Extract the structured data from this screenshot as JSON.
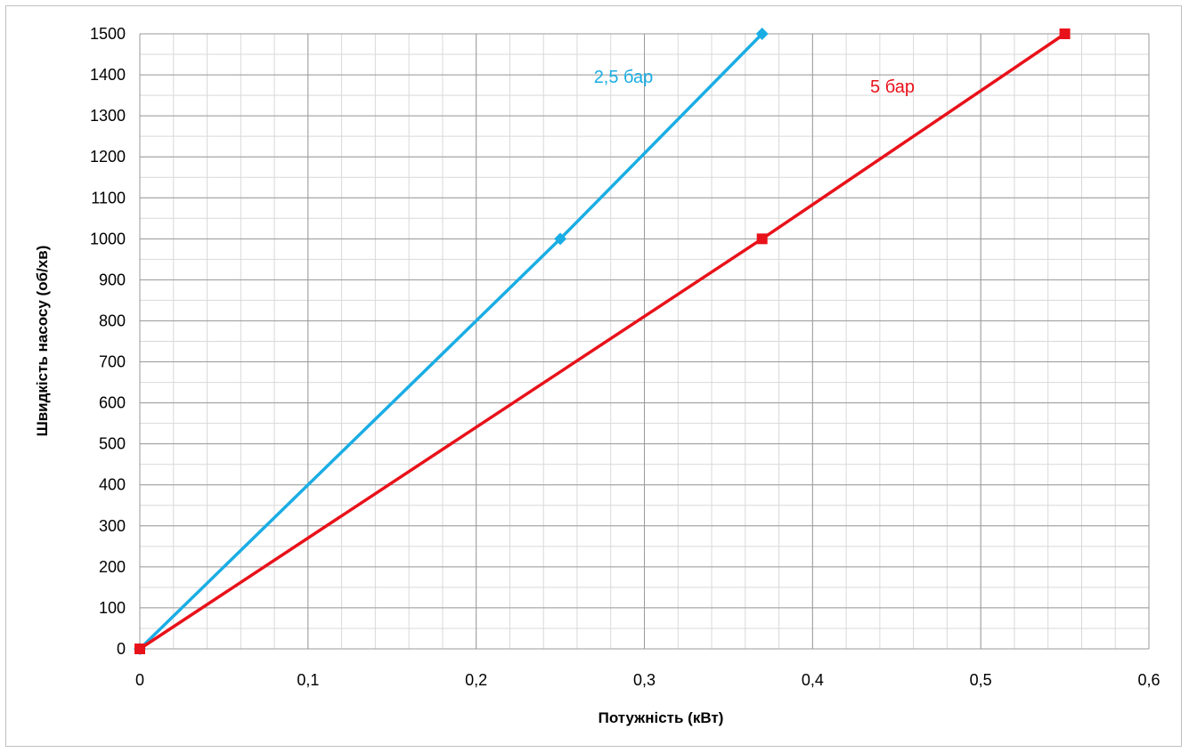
{
  "chart_data": {
    "type": "line",
    "xlabel": "Потужність (кВт)",
    "ylabel": "Швидкість насосу (об/хв)",
    "xlim": [
      0,
      0.6
    ],
    "ylim": [
      0,
      1500
    ],
    "x_ticks": [
      "0",
      "0,1",
      "0,2",
      "0,3",
      "0,4",
      "0,5",
      "0,6"
    ],
    "y_ticks": [
      "0",
      "100",
      "200",
      "300",
      "400",
      "500",
      "600",
      "700",
      "800",
      "900",
      "1000",
      "1100",
      "1200",
      "1300",
      "1400",
      "1500"
    ],
    "grid": true,
    "series": [
      {
        "name": "2,5 бар",
        "color": "#1aade4",
        "marker": "diamond",
        "x": [
          0,
          0.25,
          0.37
        ],
        "y": [
          0,
          1000,
          1500
        ]
      },
      {
        "name": "5 бар",
        "color": "#e8121a",
        "marker": "square",
        "x": [
          0,
          0.37,
          0.55
        ],
        "y": [
          0,
          1000,
          1500
        ]
      }
    ]
  }
}
